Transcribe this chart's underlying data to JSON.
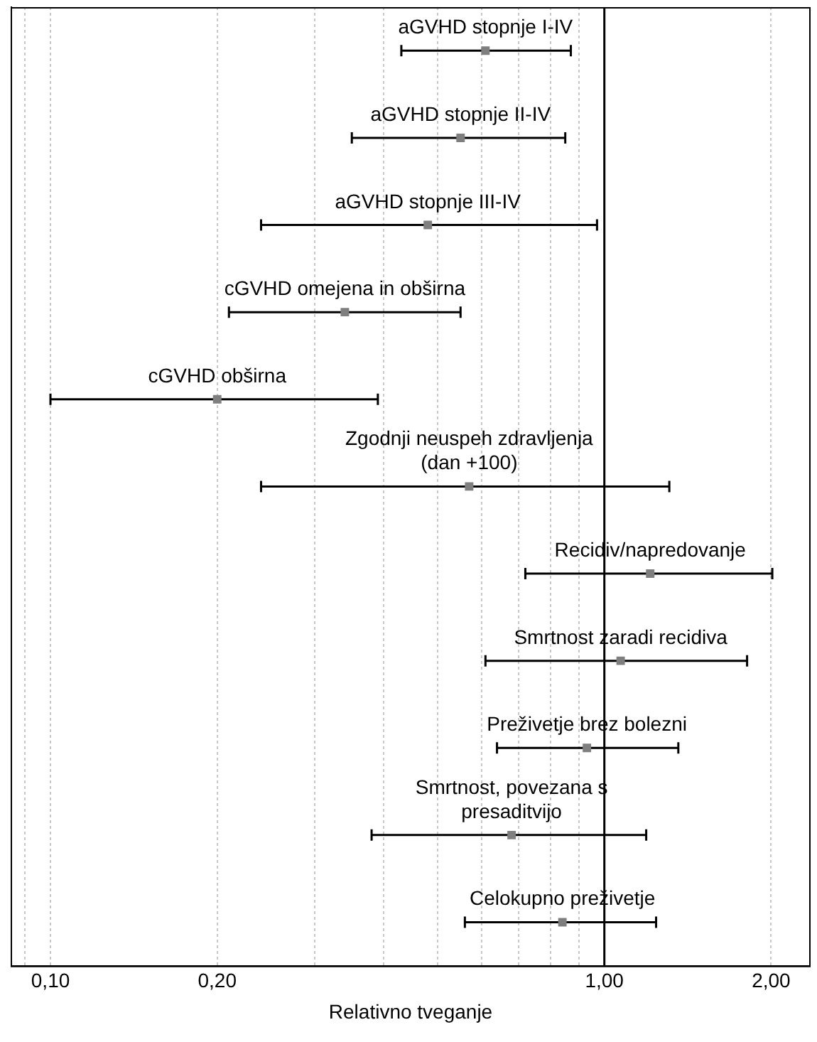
{
  "chart_data": {
    "type": "scatter",
    "orientation": "horizontal",
    "xlabel": "Relativno tveganje",
    "log": "x",
    "grid": "x",
    "legend": false,
    "marker": "square",
    "categories": [
      "aGVHD stopnje I-IV",
      "aGVHD stopnje II-IV",
      "aGVHD stopnje III-IV",
      "cGVHD omejena in obširna",
      "cGVHD obširna",
      "Zgodnji neuspeh zdravljenja\n(dan +100)",
      "Recidiv/napredovanje",
      "Smrtnost zaradi recidiva",
      "Preživetje brez bolezni",
      "Smrtnost, povezana s\npresaditvijo",
      "Celokupno preživetje"
    ],
    "series": [
      {
        "color": "#7f7f7f",
        "values": [
          0.61,
          0.55,
          0.48,
          0.34,
          0.2,
          0.57,
          1.21,
          1.07,
          0.93,
          0.68,
          0.84
        ],
        "errors": [
          [
            0.43,
            0.87
          ],
          [
            0.35,
            0.85
          ],
          [
            0.24,
            0.97
          ],
          [
            0.21,
            0.55
          ],
          [
            0.1,
            0.39
          ],
          [
            0.24,
            1.31
          ],
          [
            0.72,
            2.01
          ],
          [
            0.61,
            1.81
          ],
          [
            0.64,
            1.36
          ],
          [
            0.38,
            1.19
          ],
          [
            0.56,
            1.24
          ]
        ]
      }
    ],
    "xlim": [
      0.085,
      2.35
    ],
    "xticks": [
      {
        "value": 0.09,
        "label": null
      },
      {
        "value": 0.1,
        "label": "0,10"
      },
      {
        "value": 0.2,
        "label": "0,20"
      },
      {
        "value": 0.3,
        "label": null
      },
      {
        "value": 0.4,
        "label": null
      },
      {
        "value": 0.5,
        "label": null
      },
      {
        "value": 0.6,
        "label": null
      },
      {
        "value": 0.7,
        "label": null
      },
      {
        "value": 0.8,
        "label": null
      },
      {
        "value": 0.9,
        "label": null
      },
      {
        "value": 1,
        "label": "1,00"
      },
      {
        "value": 2,
        "label": "2,00"
      }
    ],
    "ref_lines": [
      {
        "axis": "x",
        "value": 1,
        "color": "#000000"
      }
    ]
  }
}
